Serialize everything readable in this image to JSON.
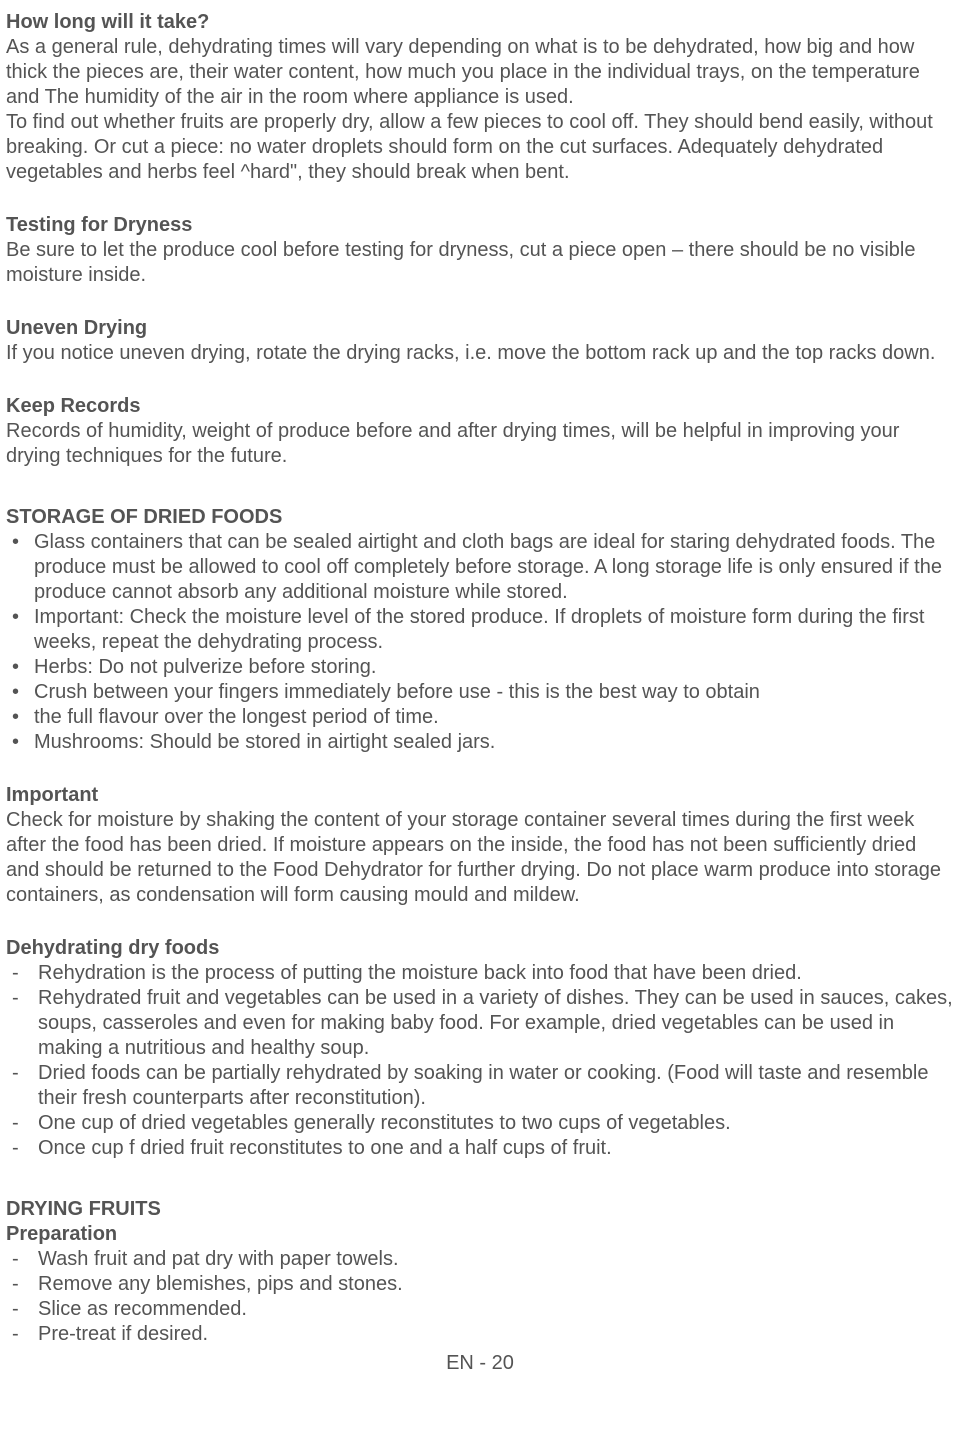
{
  "s1": {
    "h": "How long will it take?",
    "p": "As a general rule, dehydrating times will vary depending on what is to be dehydrated, how big and how thick the pieces are, their water content, how much you place in the individual trays, on the temperature and The humidity of the air in the room where appliance is used.\nTo find out whether fruits are properly dry, allow a few pieces to cool off. They should bend easily, without breaking. Or cut a piece: no water droplets should form on the cut surfaces. Adequately dehydrated vegetables and herbs feel ^hard\", they should break when bent."
  },
  "s2": {
    "h": "Testing for Dryness",
    "p": "Be sure to let the produce cool before testing for dryness, cut a piece open – there should be no visible moisture inside."
  },
  "s3": {
    "h": "Uneven Drying",
    "p": "If you notice uneven drying, rotate the drying racks, i.e. move the bottom rack up and the top racks down."
  },
  "s4": {
    "h": "Keep Records",
    "p": "Records of humidity, weight of produce before and after drying times, will be helpful in improving your drying techniques for the future."
  },
  "s5": {
    "h": "STORAGE OF DRIED FOODS",
    "items": [
      "Glass containers that can be sealed airtight and cloth bags are ideal for staring dehydrated foods. The produce must be allowed to cool off completely before storage. A long storage life is only ensured if the produce cannot absorb any additional moisture while stored.",
      "Important: Check the moisture level of the stored produce. If droplets of moisture form during the first weeks, repeat the dehydrating process.",
      "Herbs: Do not pulverize before storing.",
      "Crush between your fingers immediately before use - this is the best way to obtain",
      "the full flavour over the longest period of time.",
      "Mushrooms: Should be stored in airtight sealed jars."
    ]
  },
  "s6": {
    "h": "Important",
    "p": "Check for moisture by shaking the content of your storage container several times during the first week after the food has been dried. If moisture appears on the inside, the food has not been sufficiently dried and should be returned to the Food Dehydrator for further drying. Do not place warm produce into storage containers, as condensation will form causing mould and mildew."
  },
  "s7": {
    "h": "Dehydrating dry foods",
    "items": [
      "Rehydration is the process of putting the moisture back into food that have been dried.",
      "Rehydrated fruit and vegetables can be used in a variety of dishes. They can be used in sauces, cakes, soups, casseroles and even for making baby food. For example, dried vegetables can be used in making a nutritious and healthy soup.",
      "Dried foods can be partially rehydrated by soaking in water or cooking. (Food will taste and resemble their fresh counterparts after reconstitution).",
      "One cup of dried vegetables generally reconstitutes to two cups of vegetables.",
      "Once cup f dried fruit reconstitutes to one and a half cups of fruit."
    ]
  },
  "s8": {
    "h1": "DRYING FRUITS",
    "h2": "Preparation",
    "items": [
      "Wash fruit and pat dry with paper towels.",
      "Remove any blemishes, pips and stones.",
      "Slice as recommended.",
      "Pre-treat if desired."
    ]
  },
  "footer": "EN - 20"
}
